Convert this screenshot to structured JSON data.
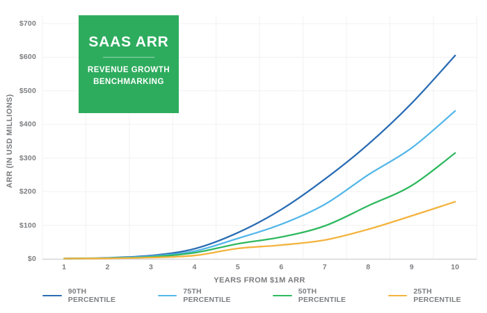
{
  "title_box": {
    "title": "SAAS ARR",
    "subtitle_line1": "REVENUE GROWTH",
    "subtitle_line2": "BENCHMARKING",
    "bg_color": "#2eac5e"
  },
  "colors": {
    "grid": "#f1f1f1",
    "axis_line": "#d6d6d6",
    "tick_text": "#7c7e81"
  },
  "chart_data": {
    "type": "line",
    "title": "SAAS ARR — Revenue Growth Benchmarking",
    "x": [
      1,
      2,
      3,
      4,
      5,
      6,
      7,
      8,
      9,
      10
    ],
    "x_ticks": [
      "1",
      "2",
      "3",
      "4",
      "5",
      "6",
      "7",
      "8",
      "9",
      "10"
    ],
    "y_ticks": [
      "$0",
      "$100",
      "$200",
      "$300",
      "$400",
      "$500",
      "$600",
      "$700"
    ],
    "xlabel": "YEARS FROM $1M ARR",
    "ylabel": "ARR (IN USD MILLIONS)",
    "ylim": [
      0,
      700
    ],
    "grid": true,
    "legend_position": "bottom",
    "series": [
      {
        "name": "90TH PERCENTILE",
        "color": "#2a6cb3",
        "values": [
          1,
          3,
          10,
          30,
          78,
          147,
          237,
          341,
          463,
          605
        ]
      },
      {
        "name": "75TH PERCENTILE",
        "color": "#54b7e9",
        "values": [
          1,
          2.5,
          8,
          23,
          61,
          103,
          162,
          250,
          330,
          440
        ]
      },
      {
        "name": "50TH PERCENTILE",
        "color": "#2eb85e",
        "values": [
          1,
          2,
          6,
          18,
          45,
          65,
          98,
          158,
          218,
          315
        ]
      },
      {
        "name": "25TH PERCENTILE",
        "color": "#f3b33d",
        "values": [
          1,
          1.5,
          4,
          10,
          31,
          41,
          56,
          88,
          128,
          170
        ]
      }
    ]
  }
}
